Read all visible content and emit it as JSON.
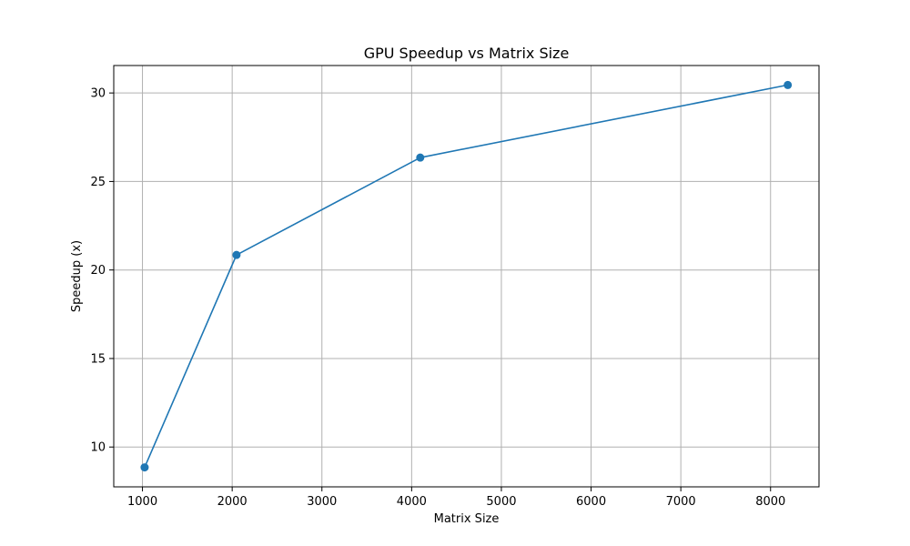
{
  "chart_data": {
    "type": "line",
    "title": "GPU Speedup vs Matrix Size",
    "xlabel": "Matrix Size",
    "ylabel": "Speedup (x)",
    "x": [
      1024,
      2048,
      4096,
      8192
    ],
    "series": [
      {
        "values": [
          8.85,
          20.85,
          26.35,
          30.45
        ],
        "color": "#1f77b4",
        "marker": "circle"
      }
    ],
    "xlim": [
      680,
      8540
    ],
    "ylim": [
      7.75,
      31.55
    ],
    "xticks": [
      1000,
      2000,
      3000,
      4000,
      5000,
      6000,
      7000,
      8000
    ],
    "yticks": [
      10,
      15,
      20,
      25,
      30
    ],
    "grid": true
  }
}
